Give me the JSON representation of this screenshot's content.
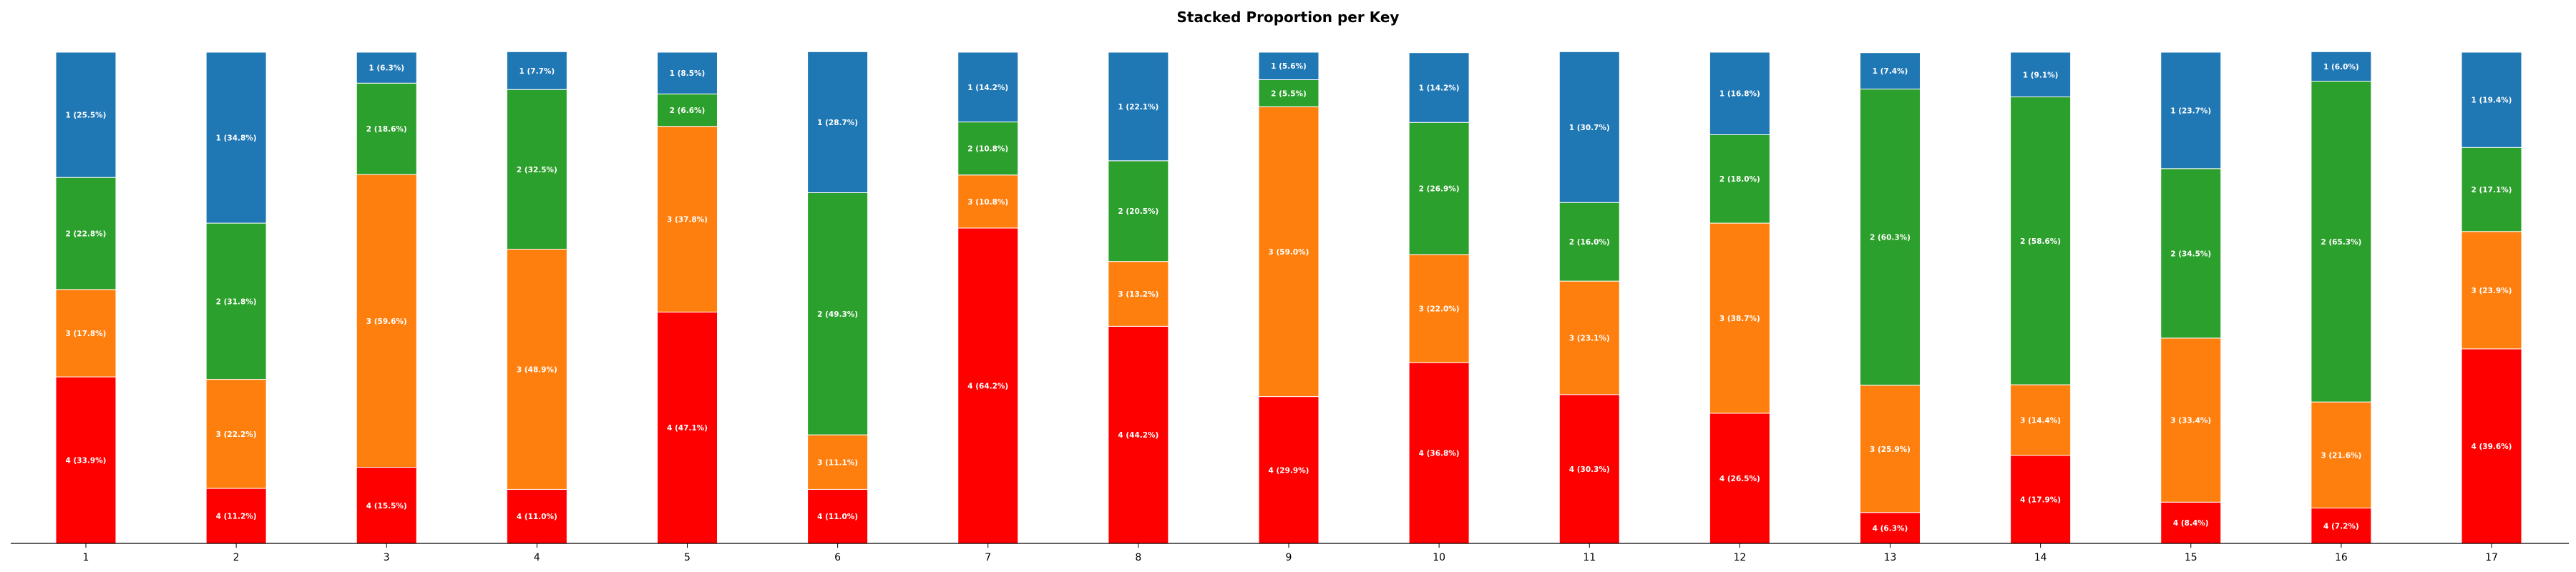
{
  "chart_data": {
    "type": "bar",
    "stacked": true,
    "title": "Stacked Proportion per Key",
    "xlabel": "",
    "ylabel": "",
    "ylim": [
      0,
      100
    ],
    "grid": false,
    "categories": [
      "1",
      "2",
      "3",
      "4",
      "5",
      "6",
      "7",
      "8",
      "9",
      "10",
      "11",
      "12",
      "13",
      "14",
      "15",
      "16",
      "17"
    ],
    "series": [
      {
        "name": "4",
        "color": "#ff0000",
        "values": [
          33.9,
          11.2,
          15.5,
          11.0,
          47.1,
          11.0,
          64.2,
          44.2,
          29.9,
          36.8,
          30.3,
          26.5,
          6.3,
          17.9,
          8.4,
          7.2,
          39.6
        ]
      },
      {
        "name": "3",
        "color": "#ff7f0e",
        "values": [
          17.8,
          22.2,
          59.6,
          48.9,
          37.8,
          11.1,
          10.8,
          13.2,
          59.0,
          22.0,
          23.1,
          38.7,
          25.9,
          14.4,
          33.4,
          21.6,
          23.9
        ]
      },
      {
        "name": "2",
        "color": "#2ca02c",
        "values": [
          22.8,
          31.8,
          18.6,
          32.5,
          6.6,
          49.3,
          10.8,
          20.5,
          5.5,
          26.9,
          16.0,
          18.0,
          60.3,
          58.6,
          34.5,
          65.3,
          17.1
        ]
      },
      {
        "name": "1",
        "color": "#1f77b4",
        "values": [
          25.5,
          34.8,
          6.3,
          7.7,
          8.5,
          28.7,
          14.2,
          22.1,
          5.6,
          14.2,
          30.7,
          16.8,
          7.4,
          9.1,
          23.7,
          6.0,
          19.4
        ]
      }
    ],
    "segment_label_format": "{name} ({value}%)"
  }
}
